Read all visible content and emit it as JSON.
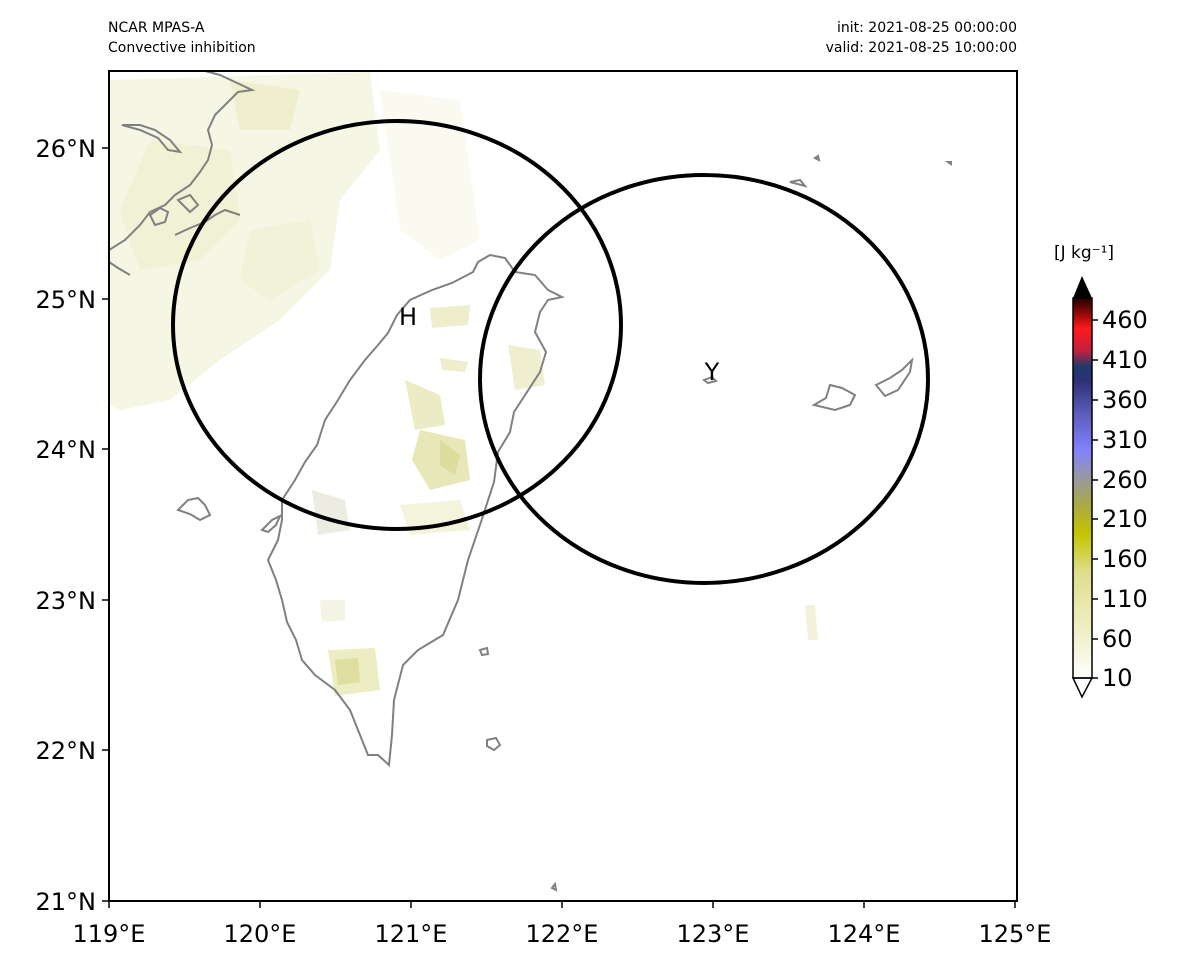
{
  "header": {
    "model": "NCAR MPAS-A",
    "field": "Convective inhibition",
    "init": "init: 2021-08-25 00:00:00",
    "valid": "valid: 2021-08-25 10:00:00"
  },
  "map": {
    "lon_range": [
      119,
      125
    ],
    "lat_range": [
      21,
      26.5
    ],
    "lon_ticks": [
      "119°E",
      "120°E",
      "121°E",
      "122°E",
      "123°E",
      "124°E",
      "125°E"
    ],
    "lat_ticks": [
      "21°N",
      "22°N",
      "23°N",
      "24°N",
      "25°N",
      "26°N"
    ],
    "markers": [
      {
        "label": "H",
        "lon": 121.0,
        "lat": 24.8
      },
      {
        "label": "Y",
        "lon": 122.95,
        "lat": 24.45
      }
    ],
    "coastline_color": "#808080",
    "circle_color": "#000000"
  },
  "colorbar": {
    "unit": "[J kg⁻¹]",
    "tick_labels": [
      "460",
      "410",
      "360",
      "310",
      "260",
      "210",
      "160",
      "110",
      "60",
      "10"
    ],
    "colors": [
      "#ffffff",
      "#eeeebb",
      "#c8c800",
      "#9a9a8a",
      "#8080ff",
      "#4c4cb4",
      "#2a3a6e",
      "#ff1a1a",
      "#8a0a0a",
      "#000000"
    ]
  }
}
